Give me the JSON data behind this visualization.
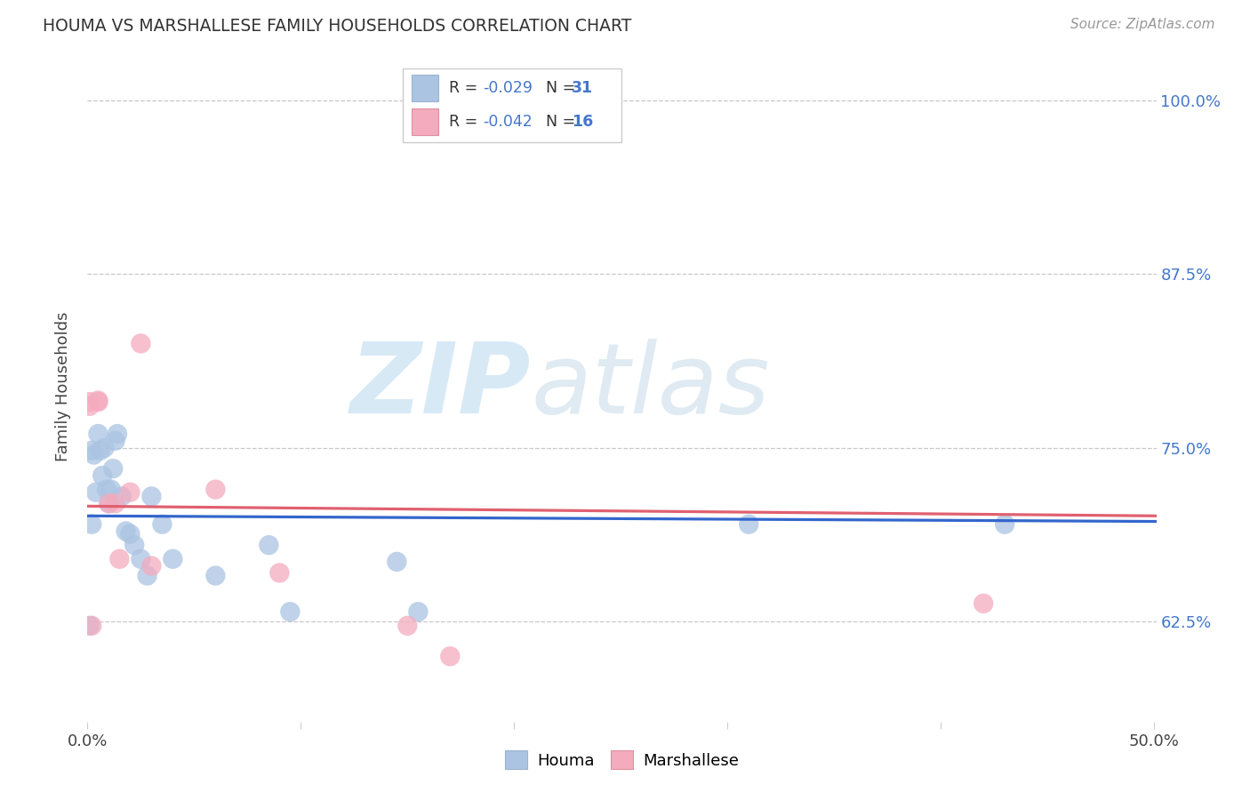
{
  "title": "HOUMA VS MARSHALLESE FAMILY HOUSEHOLDS CORRELATION CHART",
  "source": "Source: ZipAtlas.com",
  "ylabel": "Family Households",
  "xmin": 0.0,
  "xmax": 0.501,
  "ymin": 0.553,
  "ymax": 1.035,
  "yticks": [
    0.625,
    0.75,
    0.875,
    1.0
  ],
  "ytick_labels": [
    "62.5%",
    "75.0%",
    "87.5%",
    "100.0%"
  ],
  "xticks": [
    0.0,
    0.1,
    0.2,
    0.3,
    0.4,
    0.5
  ],
  "houma_color": "#aac4e2",
  "marsh_color": "#f4abbe",
  "houma_line_color": "#3366cc",
  "marsh_line_color": "#e06070",
  "background_color": "#ffffff",
  "grid_color": "#c8c8c8",
  "houma_label": "Houma",
  "marsh_label": "Marshallese",
  "houma_line_x0": 0.0,
  "houma_line_y0": 0.701,
  "houma_line_x1": 0.501,
  "houma_line_y1": 0.697,
  "marsh_line_x0": 0.0,
  "marsh_line_y0": 0.708,
  "marsh_line_x1": 0.501,
  "marsh_line_y1": 0.701,
  "houma_x": [
    0.001,
    0.002,
    0.003,
    0.004,
    0.005,
    0.006,
    0.007,
    0.008,
    0.009,
    0.01,
    0.011,
    0.012,
    0.013,
    0.014,
    0.016,
    0.018,
    0.02,
    0.022,
    0.025,
    0.028,
    0.03,
    0.035,
    0.04,
    0.06,
    0.085,
    0.095,
    0.145,
    0.155,
    0.31,
    0.43,
    0.002
  ],
  "houma_y": [
    0.622,
    0.748,
    0.745,
    0.718,
    0.76,
    0.748,
    0.73,
    0.75,
    0.72,
    0.71,
    0.72,
    0.735,
    0.755,
    0.76,
    0.715,
    0.69,
    0.688,
    0.68,
    0.67,
    0.658,
    0.715,
    0.695,
    0.67,
    0.658,
    0.68,
    0.632,
    0.668,
    0.632,
    0.695,
    0.695,
    0.695
  ],
  "marsh_x": [
    0.001,
    0.001,
    0.002,
    0.005,
    0.005,
    0.01,
    0.013,
    0.015,
    0.02,
    0.025,
    0.03,
    0.06,
    0.09,
    0.15,
    0.17,
    0.42
  ],
  "marsh_y": [
    0.78,
    0.783,
    0.622,
    0.783,
    0.784,
    0.71,
    0.71,
    0.67,
    0.718,
    0.825,
    0.665,
    0.72,
    0.66,
    0.622,
    0.6,
    0.638
  ]
}
